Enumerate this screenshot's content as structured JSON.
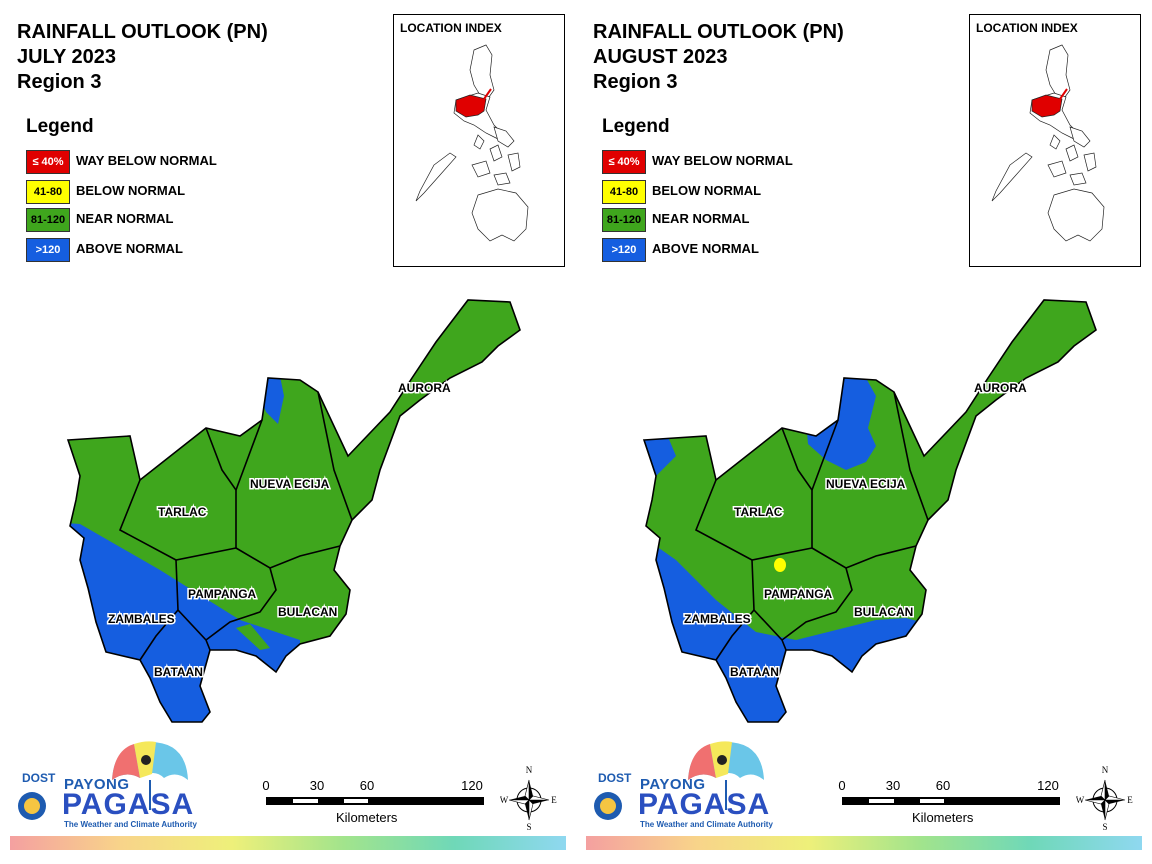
{
  "panels": [
    {
      "title_line1": "RAINFALL OUTLOOK (PN)",
      "title_line2": "JULY 2023",
      "title_line3": "Region 3",
      "location_index_label": "LOCATION INDEX",
      "provinces": [
        "AURORA",
        "NUEVA ECIJA",
        "TARLAC",
        "PAMPANGA",
        "BULACAN",
        "ZAMBALES",
        "BATAAN"
      ]
    },
    {
      "title_line1": "RAINFALL OUTLOOK (PN)",
      "title_line2": "AUGUST 2023",
      "title_line3": "Region 3",
      "location_index_label": "LOCATION INDEX",
      "provinces": [
        "AURORA",
        "NUEVA ECIJA",
        "TARLAC",
        "PAMPANGA",
        "BULACAN",
        "ZAMBALES",
        "BATAAN"
      ]
    }
  ],
  "legend": {
    "title": "Legend",
    "items": [
      {
        "range": "≤ 40%",
        "label": "WAY BELOW NORMAL",
        "color": "#e00000",
        "text_color": "#ffffff"
      },
      {
        "range": "41-80",
        "label": "BELOW NORMAL",
        "color": "#ffff00",
        "text_color": "#000000"
      },
      {
        "range": "81-120",
        "label": "NEAR NORMAL",
        "color": "#3fa61d",
        "text_color": "#000000"
      },
      {
        "range": ">120",
        "label": "ABOVE NORMAL",
        "color": "#155ee0",
        "text_color": "#ffffff"
      }
    ]
  },
  "scale_bar": {
    "ticks": [
      "0",
      "30",
      "60",
      "120"
    ],
    "unit": "Kilometers"
  },
  "compass": {
    "n": "N",
    "s": "S",
    "e": "E",
    "w": "W"
  },
  "logo": {
    "dost": "DOST",
    "payong": "PAYONG",
    "pagasa": "PAGASA",
    "tagline": "The Weather and Climate Authority"
  },
  "colors": {
    "near_normal": "#3fa61d",
    "above_normal": "#155ee0",
    "below_normal": "#ffff00",
    "highlight": "#e00000"
  }
}
